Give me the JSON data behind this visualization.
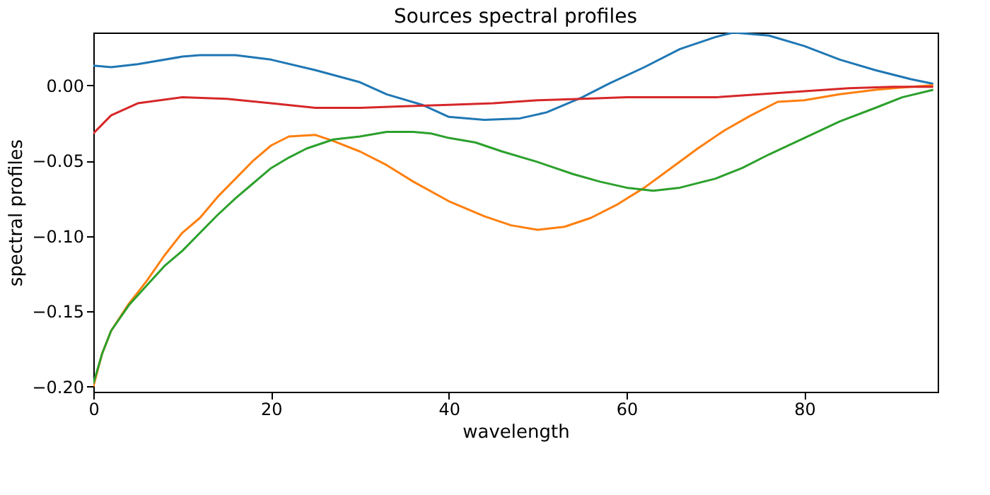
{
  "chart_data": {
    "type": "line",
    "title": "Sources spectral profiles",
    "xlabel": "wavelength",
    "ylabel": "spectral profiles",
    "xlim": [
      0,
      95
    ],
    "xticks": [
      0,
      20,
      40,
      60,
      80
    ],
    "ylim": [
      -0.2035,
      0.035
    ],
    "yticks": [
      {
        "value": -0.2,
        "label": "−0.20"
      },
      {
        "value": -0.15,
        "label": "−0.15"
      },
      {
        "value": -0.1,
        "label": "−0.10"
      },
      {
        "value": -0.05,
        "label": "−0.05"
      },
      {
        "value": 0,
        "label": "0.00"
      }
    ],
    "grid": false,
    "legend": false,
    "series": [
      {
        "color": "#1f77b4",
        "x": [
          0,
          2,
          5,
          10,
          12,
          16,
          20,
          25,
          30,
          33,
          37,
          40,
          44,
          48,
          51,
          55,
          58,
          62,
          66,
          70,
          72,
          76,
          80,
          84,
          88,
          92,
          94.5
        ],
        "values": [
          0.013,
          0.012,
          0.014,
          0.019,
          0.02,
          0.02,
          0.017,
          0.01,
          0.002,
          -0.006,
          -0.013,
          -0.021,
          -0.023,
          -0.022,
          -0.018,
          -0.008,
          0.001,
          0.012,
          0.024,
          0.032,
          0.035,
          0.033,
          0.026,
          0.017,
          0.01,
          0.004,
          0.001
        ]
      },
      {
        "color": "#ff7f0e",
        "x": [
          0,
          1,
          2,
          4,
          6,
          8,
          10,
          12,
          14,
          16,
          18,
          20,
          22,
          25,
          27,
          30,
          33,
          36,
          40,
          44,
          47,
          50,
          53,
          56,
          59,
          62,
          65,
          68,
          71,
          74,
          77,
          80,
          84,
          88,
          92,
          94.5
        ],
        "values": [
          -0.2,
          -0.178,
          -0.163,
          -0.145,
          -0.13,
          -0.113,
          -0.098,
          -0.088,
          -0.074,
          -0.062,
          -0.05,
          -0.04,
          -0.034,
          -0.033,
          -0.037,
          -0.044,
          -0.053,
          -0.064,
          -0.077,
          -0.087,
          -0.093,
          -0.096,
          -0.094,
          -0.088,
          -0.079,
          -0.068,
          -0.055,
          -0.042,
          -0.03,
          -0.02,
          -0.011,
          -0.01,
          -0.006,
          -0.003,
          -0.001,
          0.0
        ]
      },
      {
        "color": "#2ca02c",
        "x": [
          0,
          1,
          2,
          4,
          6,
          8,
          10,
          12,
          14,
          16,
          18,
          20,
          22,
          24,
          27,
          30,
          33,
          36,
          38,
          40,
          43,
          46,
          50,
          54,
          57,
          60,
          63,
          66,
          70,
          73,
          76,
          80,
          84,
          88,
          91,
          94.5
        ],
        "values": [
          -0.198,
          -0.178,
          -0.163,
          -0.146,
          -0.133,
          -0.12,
          -0.11,
          -0.098,
          -0.086,
          -0.075,
          -0.065,
          -0.055,
          -0.048,
          -0.042,
          -0.036,
          -0.034,
          -0.031,
          -0.031,
          -0.032,
          -0.035,
          -0.038,
          -0.044,
          -0.051,
          -0.059,
          -0.064,
          -0.068,
          -0.07,
          -0.068,
          -0.062,
          -0.055,
          -0.046,
          -0.035,
          -0.024,
          -0.015,
          -0.008,
          -0.003
        ]
      },
      {
        "color": "#d62728",
        "x": [
          0,
          2,
          5,
          10,
          15,
          20,
          25,
          30,
          35,
          40,
          45,
          50,
          55,
          60,
          70,
          80,
          85,
          90,
          94.5
        ],
        "values": [
          -0.032,
          -0.02,
          -0.012,
          -0.008,
          -0.009,
          -0.012,
          -0.015,
          -0.015,
          -0.014,
          -0.013,
          -0.012,
          -0.01,
          -0.009,
          -0.008,
          -0.008,
          -0.004,
          -0.002,
          -0.001,
          -0.001
        ]
      }
    ]
  }
}
